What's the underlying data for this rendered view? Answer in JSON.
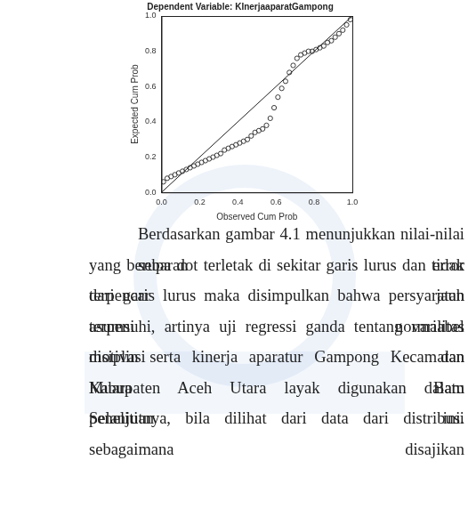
{
  "chart_data": {
    "type": "scatter",
    "title": "Dependent Variable: KInerjaaparatGampong",
    "x_label": "Observed Cum Prob",
    "y_label": "Expected Cum Prob",
    "x": [
      0.01,
      0.03,
      0.05,
      0.07,
      0.09,
      0.11,
      0.13,
      0.15,
      0.17,
      0.19,
      0.21,
      0.23,
      0.25,
      0.27,
      0.29,
      0.31,
      0.33,
      0.35,
      0.37,
      0.39,
      0.41,
      0.43,
      0.45,
      0.47,
      0.49,
      0.51,
      0.53,
      0.55,
      0.57,
      0.59,
      0.61,
      0.63,
      0.65,
      0.67,
      0.69,
      0.71,
      0.73,
      0.75,
      0.77,
      0.79,
      0.81,
      0.83,
      0.85,
      0.87,
      0.89,
      0.91,
      0.93,
      0.95,
      0.97,
      0.99
    ],
    "values": [
      0.06,
      0.08,
      0.09,
      0.1,
      0.11,
      0.12,
      0.13,
      0.14,
      0.15,
      0.16,
      0.17,
      0.18,
      0.19,
      0.2,
      0.21,
      0.22,
      0.24,
      0.25,
      0.26,
      0.27,
      0.28,
      0.29,
      0.3,
      0.32,
      0.34,
      0.35,
      0.36,
      0.38,
      0.42,
      0.48,
      0.54,
      0.59,
      0.63,
      0.68,
      0.72,
      0.76,
      0.78,
      0.79,
      0.8,
      0.8,
      0.81,
      0.82,
      0.83,
      0.85,
      0.86,
      0.88,
      0.9,
      0.92,
      0.95,
      0.98
    ],
    "color": "#3a3a3a",
    "marker": "circle",
    "reference_line": {
      "x": [
        0,
        1
      ],
      "values": [
        0,
        1
      ],
      "color": "#222222"
    },
    "xlim": [
      0,
      1
    ],
    "ylim": [
      0,
      1
    ],
    "xticks": [
      {
        "value": 0,
        "label": "0.0"
      },
      {
        "value": 0.2,
        "label": "0.2"
      },
      {
        "value": 0.4,
        "label": "0.4"
      },
      {
        "value": 0.6,
        "label": "0.6"
      },
      {
        "value": 0.8,
        "label": "0.8"
      },
      {
        "value": 1,
        "label": "1.0"
      }
    ],
    "yticks": [
      {
        "value": 0,
        "label": "0.0"
      },
      {
        "value": 0.2,
        "label": "0.2"
      },
      {
        "value": 0.4,
        "label": "0.4"
      },
      {
        "value": 0.6,
        "label": "0.6"
      },
      {
        "value": 0.8,
        "label": "0.8"
      },
      {
        "value": 1,
        "label": "1.0"
      }
    ],
    "grid": false
  },
  "paragraph": {
    "lines": [
      "Berdasarkan gambar 4.1 menunjukkan nilai-nilai sebaran error",
      "yang berupa dot terletak di sekitar garis lurus dan tidak terpencar jauh",
      "dari garis lurus maka disimpulkan bahwa persyaratan asumsi normalitas",
      "terpenuhi, artinya uji regressi ganda tentang variabel motivasi dan",
      "disiplin serta kinerja aparatur Gampong Kecamatan Muara Batu",
      "Kabupaten Aceh Utara layak digunakan dalam penelitian ini.",
      "Selanjutnya, bila dilihat dari data dari distribusi sebagaimana disajikan"
    ]
  }
}
